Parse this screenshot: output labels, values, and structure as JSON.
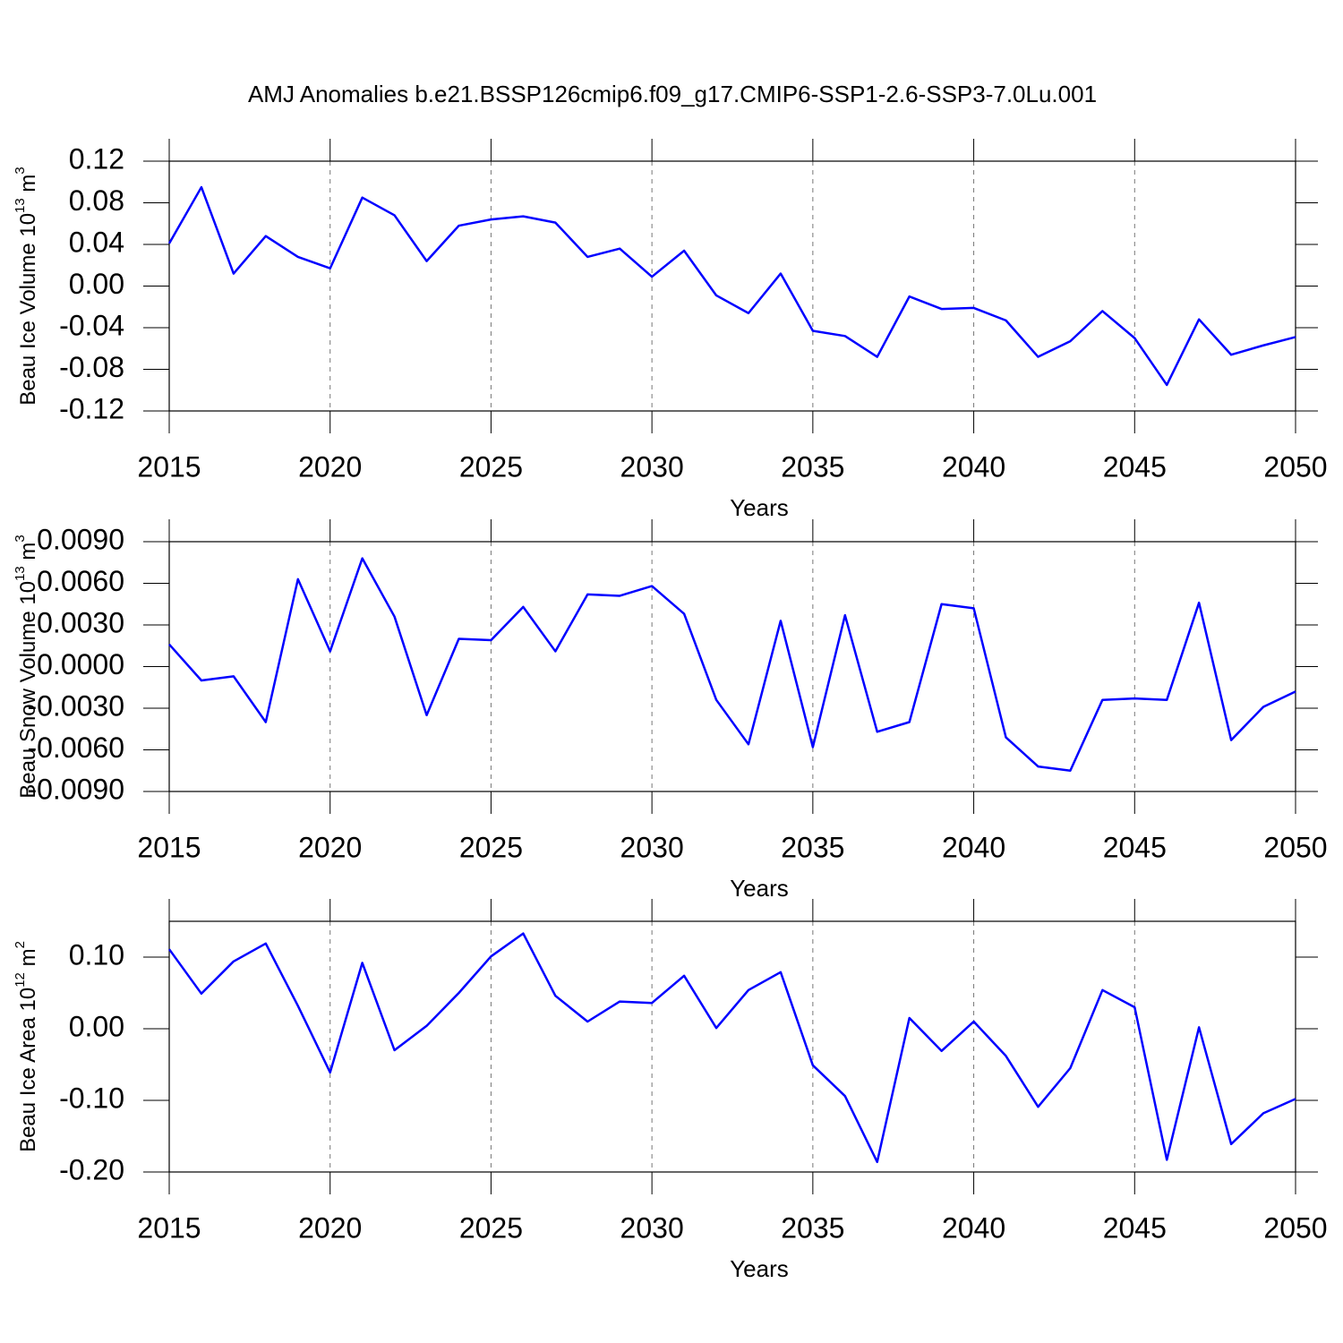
{
  "chart_data": [
    {
      "type": "line",
      "title": "AMJ Anomalies b.e21.BSSP126cmip6.f09_g17.CMIP6-SSP1-2.6-SSP3-7.0Lu.001",
      "y_label": "Beau Ice Volume 10",
      "y_label_exp": "13",
      "y_label_unit": " m",
      "y_label_unit_exp": "3",
      "x_label": "Years",
      "color": "#0000ff",
      "x": [
        2015,
        2016,
        2017,
        2018,
        2019,
        2020,
        2021,
        2022,
        2023,
        2024,
        2025,
        2026,
        2027,
        2028,
        2029,
        2030,
        2031,
        2032,
        2033,
        2034,
        2035,
        2036,
        2037,
        2038,
        2039,
        2040,
        2041,
        2042,
        2043,
        2044,
        2045,
        2046,
        2047,
        2048,
        2049,
        2050
      ],
      "values": [
        0.041,
        0.095,
        0.012,
        0.048,
        0.028,
        0.017,
        0.085,
        0.068,
        0.024,
        0.058,
        0.064,
        0.067,
        0.061,
        0.028,
        0.036,
        0.009,
        0.034,
        -0.009,
        -0.026,
        0.012,
        -0.043,
        -0.048,
        -0.068,
        -0.01,
        -0.022,
        -0.021,
        -0.033,
        -0.068,
        -0.053,
        -0.024,
        -0.05,
        -0.095,
        -0.032,
        -0.066,
        -0.057,
        -0.049
      ],
      "xlim": [
        2015,
        2050
      ],
      "xticks": [
        2015,
        2020,
        2025,
        2030,
        2035,
        2040,
        2045,
        2050
      ],
      "ylim": [
        -0.12,
        0.12
      ],
      "yticks": [
        -0.12,
        -0.08,
        -0.04,
        {
          "value": 0,
          "label": "0.00"
        },
        0.04,
        0.08,
        0.12
      ],
      "x_grid": true
    },
    {
      "type": "line",
      "y_label": "Beau Snow Volume 10",
      "y_label_exp": "13",
      "y_label_unit": " m",
      "y_label_unit_exp": "3",
      "x_label": "Years",
      "color": "#0000ff",
      "x": [
        2015,
        2016,
        2017,
        2018,
        2019,
        2020,
        2021,
        2022,
        2023,
        2024,
        2025,
        2026,
        2027,
        2028,
        2029,
        2030,
        2031,
        2032,
        2033,
        2034,
        2035,
        2036,
        2037,
        2038,
        2039,
        2040,
        2041,
        2042,
        2043,
        2044,
        2045,
        2046,
        2047,
        2048,
        2049,
        2050
      ],
      "values": [
        0.0016,
        -0.001,
        -0.0007,
        -0.004,
        0.0063,
        0.0011,
        0.0078,
        0.0036,
        -0.0035,
        0.002,
        0.0019,
        0.0043,
        0.0011,
        0.0052,
        0.0051,
        0.0058,
        0.0038,
        -0.0024,
        -0.0056,
        0.0033,
        -0.0058,
        0.0037,
        -0.0047,
        -0.004,
        0.0045,
        0.0042,
        -0.0051,
        -0.0072,
        -0.0075,
        -0.0024,
        -0.0023,
        -0.0024,
        0.0046,
        -0.0053,
        -0.0029,
        -0.0018
      ],
      "xlim": [
        2015,
        2050
      ],
      "xticks": [
        2015,
        2020,
        2025,
        2030,
        2035,
        2040,
        2045,
        2050
      ],
      "ylim": [
        -0.009,
        0.009
      ],
      "yticks": [
        {
          "value": -0.009,
          "label": "-0.0090"
        },
        {
          "value": -0.006,
          "label": "-0.0060"
        },
        {
          "value": -0.003,
          "label": "-0.0030"
        },
        {
          "value": 0,
          "label": "0.0000"
        },
        {
          "value": 0.003,
          "label": "0.0030"
        },
        {
          "value": 0.006,
          "label": "0.0060"
        },
        {
          "value": 0.009,
          "label": "0.0090"
        }
      ],
      "x_grid": true
    },
    {
      "type": "line",
      "y_label": "Beau Ice Area 10",
      "y_label_exp": "12",
      "y_label_unit": " m",
      "y_label_unit_exp": "2",
      "x_label": "Years",
      "color": "#0000ff",
      "x": [
        2015,
        2016,
        2017,
        2018,
        2019,
        2020,
        2021,
        2022,
        2023,
        2024,
        2025,
        2026,
        2027,
        2028,
        2029,
        2030,
        2031,
        2032,
        2033,
        2034,
        2035,
        2036,
        2037,
        2038,
        2039,
        2040,
        2041,
        2042,
        2043,
        2044,
        2045,
        2046,
        2047,
        2048,
        2049,
        2050
      ],
      "values": [
        0.111,
        0.049,
        0.094,
        0.119,
        0.032,
        -0.061,
        0.092,
        -0.03,
        0.004,
        0.05,
        0.101,
        0.133,
        0.046,
        0.01,
        0.038,
        0.036,
        0.074,
        0.001,
        0.054,
        0.079,
        -0.051,
        -0.094,
        -0.186,
        0.015,
        -0.031,
        0.01,
        -0.038,
        -0.109,
        -0.055,
        0.054,
        0.03,
        -0.183,
        0.002,
        -0.161,
        -0.118,
        -0.098
      ],
      "xlim": [
        2015,
        2050
      ],
      "xticks": [
        2015,
        2020,
        2025,
        2030,
        2035,
        2040,
        2045,
        2050
      ],
      "ylim": [
        -0.2,
        0.15
      ],
      "yticks": [
        {
          "value": -0.2,
          "label": "-0.20"
        },
        {
          "value": -0.1,
          "label": "-0.10"
        },
        {
          "value": 0,
          "label": "0.00"
        },
        {
          "value": 0.1,
          "label": "0.10"
        }
      ],
      "x_grid": true
    }
  ]
}
